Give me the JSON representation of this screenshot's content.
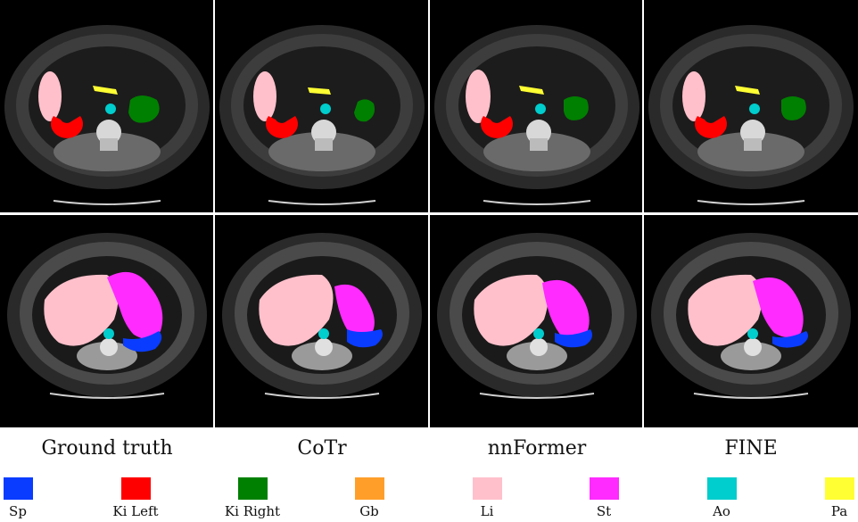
{
  "columns": [
    {
      "title": "Ground truth"
    },
    {
      "title": "CoTr"
    },
    {
      "title": "nnFormer"
    },
    {
      "title": "FINE"
    }
  ],
  "legend": [
    {
      "label": "Sp",
      "color": "#0a3cff"
    },
    {
      "label": "Ki Left",
      "color": "#ff0000"
    },
    {
      "label": "Ki Right",
      "color": "#008000"
    },
    {
      "label": "Gb",
      "color": "#ff9f2a"
    },
    {
      "label": "Li",
      "color": "#ffc0cb"
    },
    {
      "label": "St",
      "color": "#ff2bff"
    },
    {
      "label": "Ao",
      "color": "#00cdcd"
    },
    {
      "label": "Pa",
      "color": "#ffff33"
    }
  ]
}
